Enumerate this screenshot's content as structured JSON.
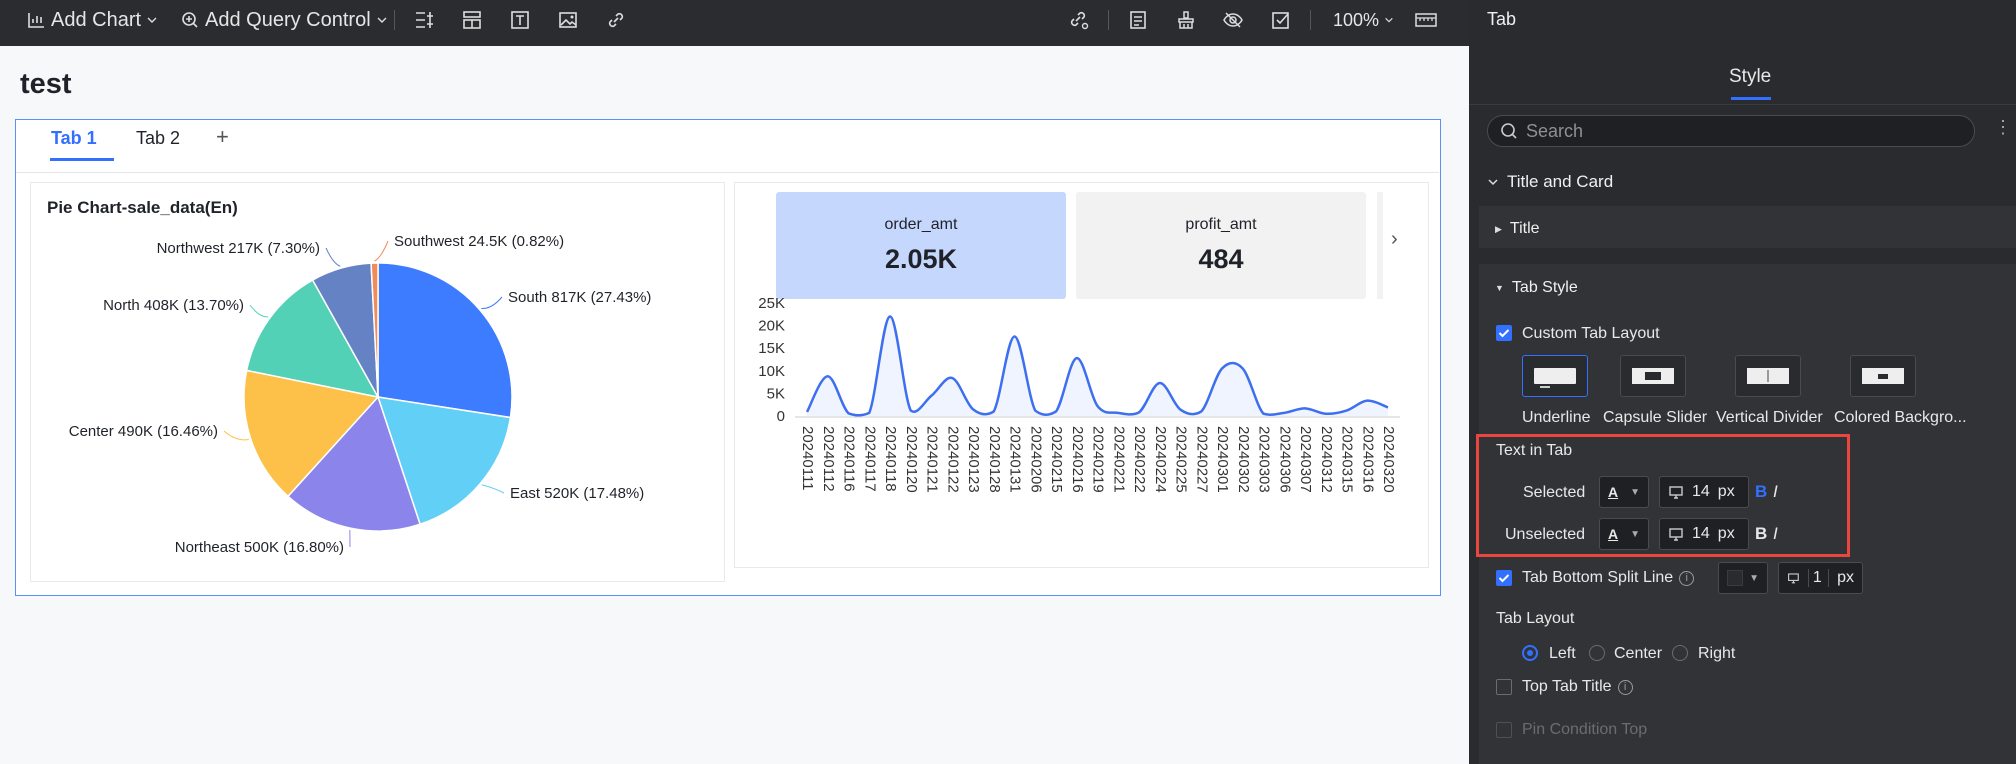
{
  "toolbar": {
    "add_chart": "Add Chart",
    "add_query_control": "Add Query Control",
    "zoom": "100%"
  },
  "page": {
    "title": "test"
  },
  "tabs": [
    {
      "label": "Tab 1",
      "selected": true
    },
    {
      "label": "Tab 2",
      "selected": false
    }
  ],
  "add_tab": "+",
  "pie": {
    "title": "Pie Chart-sale_data(En)"
  },
  "kpis": [
    {
      "label": "order_amt",
      "value": "2.05K"
    },
    {
      "label": "profit_amt",
      "value": "484"
    }
  ],
  "panel": {
    "header": "Tab",
    "style_tab": "Style",
    "search_placeholder": "Search",
    "sections": {
      "title_and_card": "Title and Card",
      "title": "Title",
      "tab_style": "Tab Style"
    },
    "custom_tab_layout": {
      "label": "Custom Tab Layout",
      "checked": true
    },
    "layout_options": [
      {
        "label": "Underline",
        "selected": true
      },
      {
        "label": "Capsule Slider"
      },
      {
        "label": "Vertical Divider"
      },
      {
        "label": "Colored Backgro..."
      }
    ],
    "text_in_tab": {
      "label": "Text in Tab",
      "selected": {
        "label": "Selected",
        "font": "A",
        "size": "14",
        "unit": "px",
        "bold": "B",
        "italic": "I"
      },
      "unselected": {
        "label": "Unselected",
        "font": "A",
        "size": "14",
        "unit": "px",
        "bold": "B",
        "italic": "I"
      }
    },
    "tab_bottom_split_line": {
      "label": "Tab Bottom Split Line",
      "checked": true,
      "width": "1",
      "unit": "px"
    },
    "tab_layout": {
      "label": "Tab Layout",
      "options": [
        "Left",
        "Center",
        "Right"
      ],
      "selected": "Left"
    },
    "top_tab_title": {
      "label": "Top Tab Title",
      "checked": false
    },
    "pin_condition_top": {
      "label": "Pin Condition Top",
      "checked": false
    }
  },
  "colors": {
    "accent": "#3370ff",
    "highlight": "#e8463f",
    "line": "#3d6ff0"
  },
  "chart_data": [
    {
      "type": "pie",
      "title": "Pie Chart-sale_data(En)",
      "categories": [
        "South",
        "East",
        "Northeast",
        "Center",
        "North",
        "Northwest",
        "Southwest"
      ],
      "values": [
        817,
        520,
        500,
        490,
        408,
        217,
        24.5
      ],
      "labels": [
        "South 817K (27.43%)",
        "East 520K (17.48%)",
        "Northeast 500K (16.80%)",
        "Center 490K (16.46%)",
        "North 408K (13.70%)",
        "Northwest 217K (7.30%)",
        "Southwest 24.5K (0.82%)"
      ],
      "colors": [
        "#3d7bff",
        "#62cff6",
        "#8b84ea",
        "#fdc14a",
        "#52d1b7",
        "#6582c4",
        "#f08b5a"
      ]
    },
    {
      "type": "line",
      "x": [
        "20240111",
        "20240112",
        "20240116",
        "20240117",
        "20240118",
        "20240120",
        "20240121",
        "20240122",
        "20240123",
        "20240128",
        "20240131",
        "20240206",
        "20240215",
        "20240216",
        "20240219",
        "20240221",
        "20240222",
        "20240224",
        "20240225",
        "20240227",
        "20240301",
        "20240302",
        "20240303",
        "20240306",
        "20240307",
        "20240312",
        "20240315",
        "20240316",
        "20240320"
      ],
      "y": [
        900,
        8800,
        600,
        700,
        22000,
        1200,
        4500,
        8400,
        1500,
        1000,
        17600,
        1200,
        1000,
        12800,
        2200,
        700,
        800,
        7300,
        1400,
        1000,
        10500,
        10500,
        500,
        700,
        1700,
        500,
        1200,
        3400,
        1900
      ],
      "yticks": [
        "25K",
        "20K",
        "15K",
        "10K",
        "5K",
        "0"
      ],
      "ylim": [
        0,
        25000
      ]
    }
  ]
}
